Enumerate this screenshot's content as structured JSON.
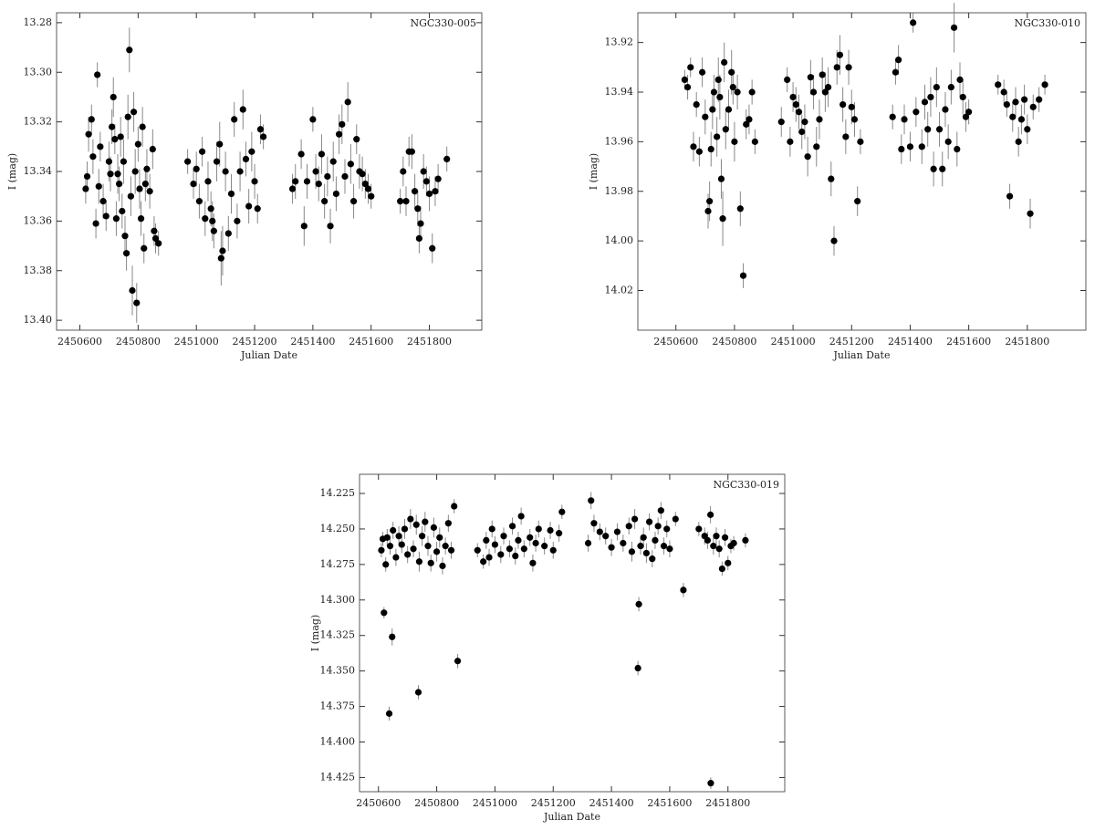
{
  "chart_data": [
    {
      "type": "scatter",
      "annotation": "NGC330-005",
      "xlabel": "Julian Date",
      "ylabel": "I (mag)",
      "color": "#000000",
      "errorbar_color": "#888888",
      "xlim": [
        2450520,
        2451980
      ],
      "ylim": [
        13.404,
        13.276
      ],
      "xticks": [
        2450600,
        2450800,
        2451000,
        2451200,
        2451400,
        2451600,
        2451800
      ],
      "yticks": [
        13.28,
        {
          "value": 13.3,
          "label": "13.30"
        },
        13.32,
        13.34,
        13.36,
        13.38,
        {
          "value": 13.4,
          "label": "13.40"
        }
      ],
      "x": [
        2450620,
        2450625,
        2450630,
        2450640,
        2450645,
        2450655,
        2450660,
        2450665,
        2450670,
        2450680,
        2450690,
        2450700,
        2450705,
        2450710,
        2450715,
        2450720,
        2450725,
        2450730,
        2450735,
        2450740,
        2450745,
        2450750,
        2450755,
        2450760,
        2450765,
        2450770,
        2450775,
        2450780,
        2450785,
        2450790,
        2450795,
        2450800,
        2450805,
        2450810,
        2450815,
        2450820,
        2450825,
        2450830,
        2450840,
        2450850,
        2450855,
        2450860,
        2450870,
        2450970,
        2450990,
        2451000,
        2451010,
        2451020,
        2451030,
        2451040,
        2451050,
        2451055,
        2451060,
        2451070,
        2451080,
        2451085,
        2451090,
        2451100,
        2451110,
        2451120,
        2451130,
        2451140,
        2451150,
        2451160,
        2451170,
        2451180,
        2451190,
        2451200,
        2451210,
        2451220,
        2451230,
        2451330,
        2451340,
        2451360,
        2451370,
        2451380,
        2451400,
        2451410,
        2451420,
        2451430,
        2451440,
        2451450,
        2451460,
        2451470,
        2451480,
        2451490,
        2451500,
        2451510,
        2451520,
        2451530,
        2451540,
        2451550,
        2451560,
        2451570,
        2451580,
        2451590,
        2451600,
        2451700,
        2451710,
        2451720,
        2451730,
        2451740,
        2451750,
        2451760,
        2451765,
        2451770,
        2451780,
        2451790,
        2451800,
        2451810,
        2451820,
        2451830,
        2451860
      ],
      "values": [
        13.347,
        13.342,
        13.325,
        13.319,
        13.334,
        13.361,
        13.301,
        13.346,
        13.33,
        13.352,
        13.358,
        13.336,
        13.341,
        13.322,
        13.31,
        13.327,
        13.359,
        13.341,
        13.345,
        13.326,
        13.356,
        13.336,
        13.366,
        13.373,
        13.318,
        13.291,
        13.35,
        13.388,
        13.316,
        13.34,
        13.393,
        13.329,
        13.347,
        13.359,
        13.322,
        13.371,
        13.345,
        13.339,
        13.348,
        13.331,
        13.364,
        13.367,
        13.369,
        13.336,
        13.345,
        13.339,
        13.352,
        13.332,
        13.359,
        13.344,
        13.355,
        13.36,
        13.364,
        13.336,
        13.329,
        13.375,
        13.372,
        13.34,
        13.365,
        13.349,
        13.319,
        13.36,
        13.34,
        13.315,
        13.335,
        13.354,
        13.332,
        13.344,
        13.355,
        13.323,
        13.326,
        13.347,
        13.344,
        13.333,
        13.362,
        13.344,
        13.319,
        13.34,
        13.345,
        13.333,
        13.352,
        13.342,
        13.362,
        13.336,
        13.349,
        13.325,
        13.321,
        13.342,
        13.312,
        13.337,
        13.352,
        13.327,
        13.34,
        13.341,
        13.345,
        13.347,
        13.35,
        13.352,
        13.34,
        13.352,
        13.332,
        13.332,
        13.348,
        13.355,
        13.367,
        13.361,
        13.34,
        13.344,
        13.349,
        13.371,
        13.348,
        13.343,
        13.335
      ],
      "errors": [
        0.006,
        0.006,
        0.007,
        0.006,
        0.007,
        0.006,
        0.005,
        0.007,
        0.006,
        0.007,
        0.006,
        0.008,
        0.007,
        0.007,
        0.008,
        0.006,
        0.007,
        0.008,
        0.007,
        0.008,
        0.007,
        0.009,
        0.008,
        0.007,
        0.009,
        0.009,
        0.008,
        0.01,
        0.008,
        0.009,
        0.008,
        0.007,
        0.008,
        0.007,
        0.008,
        0.006,
        0.007,
        0.008,
        0.007,
        0.008,
        0.006,
        0.006,
        0.005,
        0.005,
        0.006,
        0.007,
        0.007,
        0.006,
        0.007,
        0.008,
        0.007,
        0.008,
        0.007,
        0.008,
        0.009,
        0.011,
        0.01,
        0.008,
        0.007,
        0.008,
        0.007,
        0.007,
        0.008,
        0.008,
        0.007,
        0.007,
        0.008,
        0.007,
        0.006,
        0.006,
        0.005,
        0.006,
        0.007,
        0.006,
        0.008,
        0.007,
        0.005,
        0.007,
        0.007,
        0.008,
        0.007,
        0.008,
        0.007,
        0.008,
        0.007,
        0.008,
        0.008,
        0.007,
        0.008,
        0.008,
        0.007,
        0.006,
        0.007,
        0.007,
        0.006,
        0.006,
        0.005,
        0.005,
        0.006,
        0.006,
        0.006,
        0.007,
        0.007,
        0.007,
        0.006,
        0.007,
        0.007,
        0.006,
        0.007,
        0.006,
        0.006,
        0.006,
        0.005
      ]
    },
    {
      "type": "scatter",
      "annotation": "NGC330-010",
      "xlabel": "Julian Date",
      "ylabel": "I (mag)",
      "color": "#000000",
      "errorbar_color": "#888888",
      "xlim": [
        2450470,
        2452000
      ],
      "ylim": [
        14.036,
        13.908
      ],
      "xticks": [
        2450600,
        2450800,
        2451000,
        2451200,
        2451400,
        2451600,
        2451800
      ],
      "yticks": [
        13.92,
        13.94,
        13.96,
        13.98,
        {
          "value": 14,
          "label": "14.00"
        },
        14.02
      ],
      "x": [
        2450630,
        2450640,
        2450650,
        2450660,
        2450670,
        2450680,
        2450690,
        2450700,
        2450710,
        2450715,
        2450720,
        2450725,
        2450730,
        2450740,
        2450745,
        2450750,
        2450755,
        2450760,
        2450765,
        2450770,
        2450780,
        2450790,
        2450795,
        2450800,
        2450810,
        2450820,
        2450830,
        2450840,
        2450850,
        2450860,
        2450870,
        2450960,
        2450980,
        2450990,
        2451000,
        2451010,
        2451020,
        2451030,
        2451040,
        2451050,
        2451060,
        2451070,
        2451080,
        2451090,
        2451100,
        2451110,
        2451120,
        2451130,
        2451140,
        2451150,
        2451160,
        2451170,
        2451180,
        2451190,
        2451200,
        2451210,
        2451220,
        2451230,
        2451340,
        2451350,
        2451360,
        2451370,
        2451380,
        2451400,
        2451410,
        2451420,
        2451440,
        2451450,
        2451460,
        2451470,
        2451480,
        2451490,
        2451500,
        2451510,
        2451520,
        2451530,
        2451540,
        2451550,
        2451560,
        2451570,
        2451580,
        2451590,
        2451600,
        2451700,
        2451720,
        2451730,
        2451740,
        2451750,
        2451760,
        2451770,
        2451780,
        2451790,
        2451800,
        2451810,
        2451820,
        2451840,
        2451860
      ],
      "values": [
        13.935,
        13.938,
        13.93,
        13.962,
        13.945,
        13.964,
        13.932,
        13.95,
        13.988,
        13.984,
        13.963,
        13.947,
        13.94,
        13.958,
        13.935,
        13.942,
        13.975,
        13.991,
        13.928,
        13.955,
        13.947,
        13.932,
        13.938,
        13.96,
        13.94,
        13.987,
        14.014,
        13.953,
        13.951,
        13.94,
        13.96,
        13.952,
        13.935,
        13.96,
        13.942,
        13.945,
        13.948,
        13.956,
        13.952,
        13.966,
        13.934,
        13.94,
        13.962,
        13.951,
        13.933,
        13.94,
        13.938,
        13.975,
        14.0,
        13.93,
        13.925,
        13.945,
        13.958,
        13.93,
        13.946,
        13.951,
        13.984,
        13.96,
        13.95,
        13.932,
        13.927,
        13.963,
        13.951,
        13.962,
        13.912,
        13.948,
        13.962,
        13.944,
        13.955,
        13.942,
        13.971,
        13.938,
        13.955,
        13.971,
        13.947,
        13.96,
        13.938,
        13.914,
        13.963,
        13.935,
        13.942,
        13.95,
        13.948,
        13.937,
        13.94,
        13.945,
        13.982,
        13.95,
        13.944,
        13.96,
        13.951,
        13.943,
        13.955,
        13.989,
        13.946,
        13.943,
        13.937
      ],
      "errors": [
        0.004,
        0.005,
        0.004,
        0.006,
        0.005,
        0.006,
        0.006,
        0.007,
        0.007,
        0.008,
        0.007,
        0.008,
        0.007,
        0.008,
        0.009,
        0.009,
        0.008,
        0.011,
        0.008,
        0.008,
        0.008,
        0.009,
        0.007,
        0.008,
        0.007,
        0.007,
        0.005,
        0.006,
        0.006,
        0.005,
        0.005,
        0.006,
        0.005,
        0.006,
        0.006,
        0.007,
        0.007,
        0.007,
        0.007,
        0.008,
        0.007,
        0.007,
        0.008,
        0.008,
        0.007,
        0.008,
        0.008,
        0.007,
        0.006,
        0.007,
        0.008,
        0.007,
        0.007,
        0.007,
        0.007,
        0.007,
        0.006,
        0.005,
        0.005,
        0.005,
        0.006,
        0.006,
        0.006,
        0.006,
        0.004,
        0.006,
        0.007,
        0.007,
        0.007,
        0.008,
        0.007,
        0.008,
        0.007,
        0.007,
        0.007,
        0.007,
        0.007,
        0.01,
        0.007,
        0.007,
        0.007,
        0.006,
        0.005,
        0.004,
        0.005,
        0.005,
        0.005,
        0.006,
        0.006,
        0.006,
        0.006,
        0.006,
        0.006,
        0.006,
        0.005,
        0.005,
        0.004
      ]
    },
    {
      "type": "scatter",
      "annotation": "NGC330-019",
      "xlabel": "Julian Date",
      "ylabel": "I (mag)",
      "color": "#000000",
      "errorbar_color": "#888888",
      "xlim": [
        2450535,
        2451995
      ],
      "ylim": [
        14.435,
        14.2115
      ],
      "xticks": [
        2450600,
        2450800,
        2451000,
        2451200,
        2451400,
        2451600,
        2451800
      ],
      "yticks": [
        14.225,
        {
          "value": 14.25,
          "label": "14.250"
        },
        14.275,
        {
          "value": 14.3,
          "label": "14.300"
        },
        14.325,
        {
          "value": 14.35,
          "label": "14.350"
        },
        14.375,
        {
          "value": 14.4,
          "label": "14.400"
        },
        14.425
      ],
      "x": [
        2450610,
        2450615,
        2450619,
        2450625,
        2450630,
        2450637,
        2450640,
        2450647,
        2450650,
        2450660,
        2450670,
        2450680,
        2450690,
        2450700,
        2450710,
        2450720,
        2450730,
        2450737,
        2450740,
        2450750,
        2450760,
        2450770,
        2450780,
        2450790,
        2450800,
        2450810,
        2450820,
        2450830,
        2450840,
        2450850,
        2450860,
        2450872,
        2450940,
        2450960,
        2450970,
        2450980,
        2450990,
        2451000,
        2451020,
        2451030,
        2451050,
        2451060,
        2451070,
        2451080,
        2451090,
        2451100,
        2451120,
        2451130,
        2451140,
        2451150,
        2451170,
        2451190,
        2451200,
        2451220,
        2451230,
        2451320,
        2451330,
        2451340,
        2451360,
        2451380,
        2451400,
        2451420,
        2451440,
        2451460,
        2451470,
        2451480,
        2451491,
        2451494,
        2451500,
        2451510,
        2451520,
        2451530,
        2451540,
        2451550,
        2451560,
        2451570,
        2451580,
        2451590,
        2451600,
        2451620,
        2451647,
        2451700,
        2451720,
        2451730,
        2451741,
        2451740,
        2451750,
        2451760,
        2451770,
        2451780,
        2451790,
        2451800,
        2451810,
        2451820,
        2451860
      ],
      "values": [
        14.265,
        14.257,
        14.309,
        14.275,
        14.256,
        14.38,
        14.262,
        14.326,
        14.251,
        14.27,
        14.255,
        14.261,
        14.25,
        14.268,
        14.243,
        14.264,
        14.247,
        14.365,
        14.273,
        14.255,
        14.245,
        14.262,
        14.274,
        14.249,
        14.266,
        14.256,
        14.276,
        14.262,
        14.246,
        14.265,
        14.234,
        14.343,
        14.265,
        14.273,
        14.258,
        14.27,
        14.25,
        14.261,
        14.268,
        14.255,
        14.264,
        14.248,
        14.269,
        14.258,
        14.241,
        14.264,
        14.256,
        14.274,
        14.26,
        14.25,
        14.262,
        14.251,
        14.265,
        14.253,
        14.238,
        14.26,
        14.23,
        14.246,
        14.252,
        14.255,
        14.263,
        14.252,
        14.26,
        14.248,
        14.266,
        14.243,
        14.348,
        14.303,
        14.262,
        14.256,
        14.267,
        14.245,
        14.271,
        14.258,
        14.248,
        14.237,
        14.262,
        14.25,
        14.264,
        14.243,
        14.293,
        14.25,
        14.255,
        14.258,
        14.429,
        14.24,
        14.262,
        14.255,
        14.264,
        14.278,
        14.256,
        14.274,
        14.262,
        14.26,
        14.258
      ],
      "errors": [
        0.005,
        0.005,
        0.004,
        0.005,
        0.006,
        0.005,
        0.006,
        0.006,
        0.006,
        0.006,
        0.007,
        0.006,
        0.007,
        0.006,
        0.007,
        0.006,
        0.007,
        0.005,
        0.007,
        0.007,
        0.007,
        0.007,
        0.006,
        0.007,
        0.007,
        0.007,
        0.006,
        0.006,
        0.006,
        0.006,
        0.005,
        0.005,
        0.005,
        0.005,
        0.006,
        0.006,
        0.006,
        0.006,
        0.006,
        0.006,
        0.006,
        0.006,
        0.006,
        0.006,
        0.006,
        0.006,
        0.006,
        0.006,
        0.006,
        0.006,
        0.006,
        0.006,
        0.006,
        0.006,
        0.005,
        0.006,
        0.006,
        0.006,
        0.006,
        0.006,
        0.006,
        0.006,
        0.006,
        0.006,
        0.007,
        0.007,
        0.005,
        0.005,
        0.006,
        0.007,
        0.007,
        0.006,
        0.006,
        0.006,
        0.006,
        0.006,
        0.006,
        0.006,
        0.006,
        0.005,
        0.005,
        0.005,
        0.006,
        0.006,
        0.004,
        0.006,
        0.006,
        0.006,
        0.006,
        0.005,
        0.006,
        0.005,
        0.005,
        0.005,
        0.005
      ]
    }
  ]
}
